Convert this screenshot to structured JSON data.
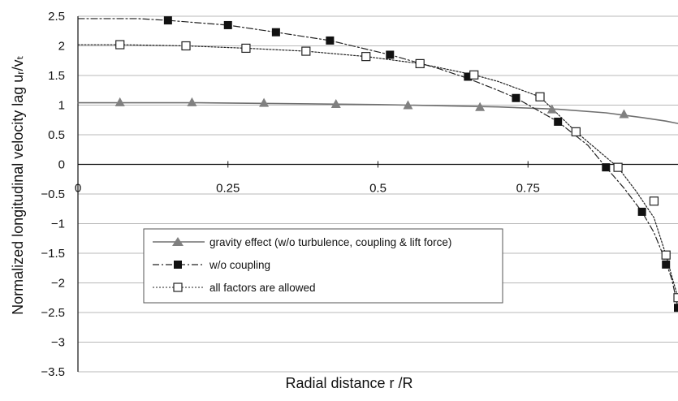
{
  "chart_data": {
    "type": "line",
    "xlabel": "Radial distance r /R",
    "ylabel": "Normalized longitudinal velocity lag uᵣ/vₜ",
    "xlim": [
      0,
      1
    ],
    "ylim": [
      -3.5,
      2.5
    ],
    "x_ticks": [
      0,
      0.25,
      0.5,
      0.75
    ],
    "x_tick_labels": [
      "0",
      "0.25",
      "0.5",
      "0.75"
    ],
    "y_ticks": [
      2.5,
      2,
      1.5,
      1,
      0.5,
      0,
      -0.5,
      -1,
      -1.5,
      -2,
      -2.5,
      -3,
      -3.5
    ],
    "y_tick_labels": [
      "2.5",
      "2",
      "1.5",
      "1",
      "0.5",
      "0",
      "−0.5",
      "−1",
      "−1.5",
      "−2",
      "−2.5",
      "−3",
      "−3.5"
    ],
    "grid": "horizontal",
    "legend_position": "lower-left",
    "series": [
      {
        "name": "gravity effect (w/o turbulence, coupling & lift force)",
        "marker": "triangle",
        "line_style": "solid",
        "color": "#707070",
        "curve": [
          [
            0,
            1.04
          ],
          [
            0.1,
            1.04
          ],
          [
            0.2,
            1.04
          ],
          [
            0.3,
            1.03
          ],
          [
            0.4,
            1.02
          ],
          [
            0.5,
            1.01
          ],
          [
            0.6,
            0.99
          ],
          [
            0.7,
            0.97
          ],
          [
            0.8,
            0.93
          ],
          [
            0.88,
            0.87
          ],
          [
            0.94,
            0.79
          ],
          [
            0.98,
            0.73
          ],
          [
            1.0,
            0.69
          ]
        ],
        "markers": [
          [
            0.07,
            1.05
          ],
          [
            0.19,
            1.05
          ],
          [
            0.31,
            1.04
          ],
          [
            0.43,
            1.02
          ],
          [
            0.55,
            1.0
          ],
          [
            0.67,
            0.97
          ],
          [
            0.79,
            0.93
          ],
          [
            0.91,
            0.85
          ]
        ]
      },
      {
        "name": "w/o coupling",
        "marker": "filled-square",
        "line_style": "dash-dot",
        "color": "#222222",
        "curve": [
          [
            0,
            2.46
          ],
          [
            0.1,
            2.46
          ],
          [
            0.15,
            2.43
          ],
          [
            0.25,
            2.35
          ],
          [
            0.33,
            2.23
          ],
          [
            0.42,
            2.09
          ],
          [
            0.52,
            1.85
          ],
          [
            0.6,
            1.62
          ],
          [
            0.65,
            1.45
          ],
          [
            0.7,
            1.25
          ],
          [
            0.73,
            1.12
          ],
          [
            0.8,
            0.72
          ],
          [
            0.85,
            0.32
          ],
          [
            0.88,
            -0.05
          ],
          [
            0.91,
            -0.4
          ],
          [
            0.94,
            -0.8
          ],
          [
            0.96,
            -1.15
          ],
          [
            0.98,
            -1.65
          ],
          [
            0.99,
            -1.95
          ],
          [
            1.0,
            -2.42
          ],
          [
            1.01,
            -2.9
          ],
          [
            1.02,
            -3.45
          ]
        ],
        "markers": [
          [
            0.15,
            2.43
          ],
          [
            0.25,
            2.35
          ],
          [
            0.33,
            2.23
          ],
          [
            0.42,
            2.09
          ],
          [
            0.52,
            1.85
          ],
          [
            0.65,
            1.48
          ],
          [
            0.73,
            1.12
          ],
          [
            0.8,
            0.72
          ],
          [
            0.88,
            -0.05
          ],
          [
            0.94,
            -0.8
          ],
          [
            0.98,
            -1.69
          ],
          [
            1.0,
            -2.42
          ]
        ]
      },
      {
        "name": "all factors are allowed",
        "marker": "open-square",
        "line_style": "dotted",
        "color": "#222222",
        "curve": [
          [
            0,
            2.02
          ],
          [
            0.07,
            2.02
          ],
          [
            0.18,
            2.0
          ],
          [
            0.28,
            1.96
          ],
          [
            0.38,
            1.91
          ],
          [
            0.48,
            1.82
          ],
          [
            0.57,
            1.7
          ],
          [
            0.66,
            1.51
          ],
          [
            0.7,
            1.4
          ],
          [
            0.77,
            1.14
          ],
          [
            0.83,
            0.55
          ],
          [
            0.9,
            -0.05
          ],
          [
            0.93,
            -0.45
          ],
          [
            0.96,
            -0.9
          ],
          [
            0.98,
            -1.53
          ],
          [
            0.99,
            -1.9
          ],
          [
            1.0,
            -2.25
          ],
          [
            1.01,
            -2.8
          ],
          [
            1.02,
            -3.45
          ]
        ],
        "markers": [
          [
            0.07,
            2.02
          ],
          [
            0.18,
            2.0
          ],
          [
            0.28,
            1.96
          ],
          [
            0.38,
            1.91
          ],
          [
            0.48,
            1.82
          ],
          [
            0.57,
            1.7
          ],
          [
            0.66,
            1.51
          ],
          [
            0.77,
            1.14
          ],
          [
            0.83,
            0.55
          ],
          [
            0.9,
            -0.05
          ],
          [
            0.96,
            -0.62
          ],
          [
            0.98,
            -1.53
          ],
          [
            1.0,
            -2.25
          ]
        ]
      }
    ]
  }
}
